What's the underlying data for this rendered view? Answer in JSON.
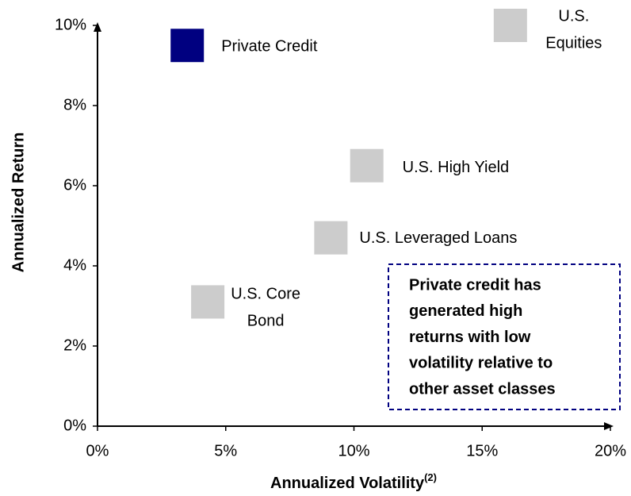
{
  "chart_data": {
    "type": "scatter",
    "xlabel": "Annualized Volatility",
    "xlabel_note": "(2)",
    "ylabel": "Annualized Return",
    "xlim": [
      0,
      20
    ],
    "ylim": [
      0,
      10
    ],
    "xticks": [
      {
        "value": 0,
        "label": "0%"
      },
      {
        "value": 5,
        "label": "5%"
      },
      {
        "value": 10,
        "label": "10%"
      },
      {
        "value": 15,
        "label": "15%"
      },
      {
        "value": 20,
        "label": "20%"
      }
    ],
    "yticks": [
      {
        "value": 0,
        "label": "0%"
      },
      {
        "value": 2,
        "label": "2%"
      },
      {
        "value": 4,
        "label": "4%"
      },
      {
        "value": 6,
        "label": "6%"
      },
      {
        "value": 8,
        "label": "8%"
      },
      {
        "value": 10,
        "label": "10%"
      }
    ],
    "grid": false,
    "points": [
      {
        "label": [
          "Private Credit"
        ],
        "x": 3.5,
        "y": 9.5,
        "color": "#000080"
      },
      {
        "label": [
          "U.S.",
          "Equities"
        ],
        "x": 16.1,
        "y": 10.0,
        "color": "#cccccc"
      },
      {
        "label": [
          "U.S. High Yield"
        ],
        "x": 10.5,
        "y": 6.5,
        "color": "#cccccc"
      },
      {
        "label": [
          "U.S. Leveraged Loans"
        ],
        "x": 9.1,
        "y": 4.7,
        "color": "#cccccc"
      },
      {
        "label": [
          "U.S. Core",
          "Bond"
        ],
        "x": 4.3,
        "y": 3.1,
        "color": "#cccccc"
      }
    ],
    "annotation": [
      "Private credit has",
      "generated high",
      "returns with low",
      "volatility relative to",
      "other asset classes"
    ]
  }
}
